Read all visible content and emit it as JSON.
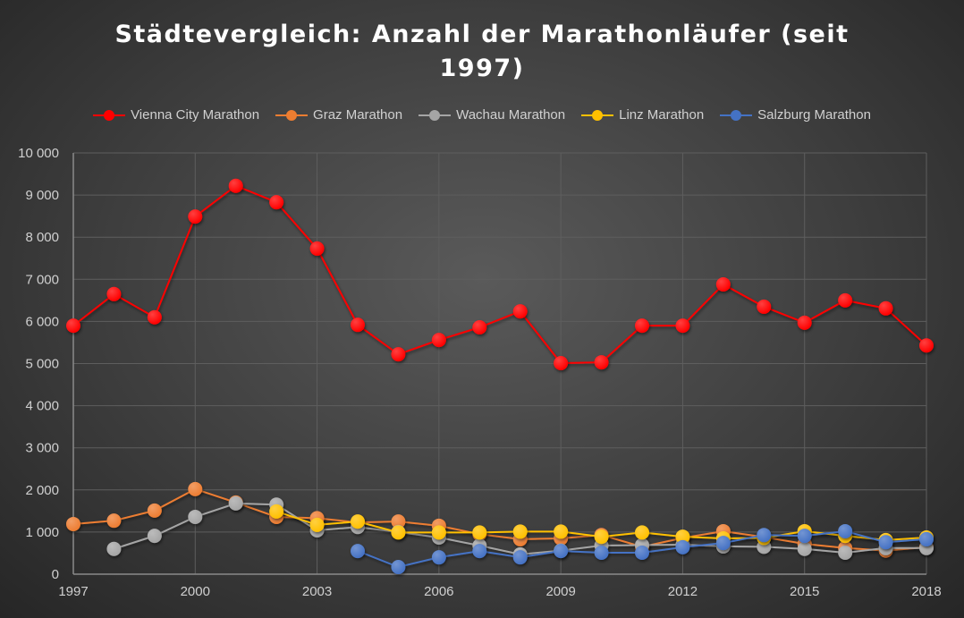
{
  "chart_data": {
    "type": "line",
    "title": "Städtevergleich: Anzahl der Marathonläufer (seit 1997)",
    "title_lines": [
      "Städtevergleich: Anzahl der Marathonläufer (seit",
      "1997)"
    ],
    "xlabel": "",
    "ylabel": "",
    "x": [
      1997,
      1998,
      1999,
      2000,
      2001,
      2002,
      2003,
      2004,
      2005,
      2006,
      2007,
      2008,
      2009,
      2010,
      2011,
      2012,
      2013,
      2014,
      2015,
      2016,
      2017,
      2018
    ],
    "xlim": [
      1997,
      2018
    ],
    "ylim": [
      0,
      10000
    ],
    "x_ticks": [
      "1997",
      "2000",
      "2003",
      "2006",
      "2009",
      "2012",
      "2015",
      "2018"
    ],
    "x_tick_values": [
      1997,
      2000,
      2003,
      2006,
      2009,
      2012,
      2015,
      2018
    ],
    "y_ticks": [
      "0",
      "1 000",
      "2 000",
      "3 000",
      "4 000",
      "5 000",
      "6 000",
      "7 000",
      "8 000",
      "9 000",
      "10 000"
    ],
    "y_tick_values": [
      0,
      1000,
      2000,
      3000,
      4000,
      5000,
      6000,
      7000,
      8000,
      9000,
      10000
    ],
    "grid": true,
    "legend_position": "top",
    "series": [
      {
        "name": "Vienna City Marathon",
        "color": "#ff0000",
        "values": [
          5900,
          6650,
          6100,
          8490,
          9220,
          8830,
          7730,
          5920,
          5220,
          5560,
          5860,
          6240,
          5010,
          5030,
          5900,
          5900,
          6880,
          6350,
          5970,
          6500,
          6310,
          5430
        ]
      },
      {
        "name": "Graz Marathon",
        "color": "#ed7d31",
        "values": [
          1190,
          1270,
          1510,
          2020,
          1700,
          1360,
          1330,
          1230,
          1250,
          1150,
          950,
          830,
          850,
          930,
          650,
          860,
          1020,
          880,
          720,
          620,
          560,
          640
        ]
      },
      {
        "name": "Wachau Marathon",
        "color": "#a5a5a5",
        "values": [
          null,
          600,
          910,
          1360,
          1680,
          1650,
          1040,
          1120,
          1000,
          870,
          680,
          470,
          560,
          680,
          690,
          700,
          660,
          650,
          600,
          510,
          620,
          620
        ]
      },
      {
        "name": "Linz Marathon",
        "color": "#ffc000",
        "values": [
          null,
          null,
          null,
          null,
          null,
          1490,
          1170,
          1250,
          990,
          990,
          990,
          1010,
          1010,
          890,
          990,
          890,
          850,
          860,
          1020,
          910,
          810,
          870
        ]
      },
      {
        "name": "Salzburg Marathon",
        "color": "#4472c4",
        "values": [
          null,
          null,
          null,
          null,
          null,
          null,
          null,
          550,
          170,
          400,
          550,
          400,
          550,
          510,
          510,
          640,
          740,
          930,
          910,
          1020,
          760,
          830
        ]
      }
    ]
  }
}
